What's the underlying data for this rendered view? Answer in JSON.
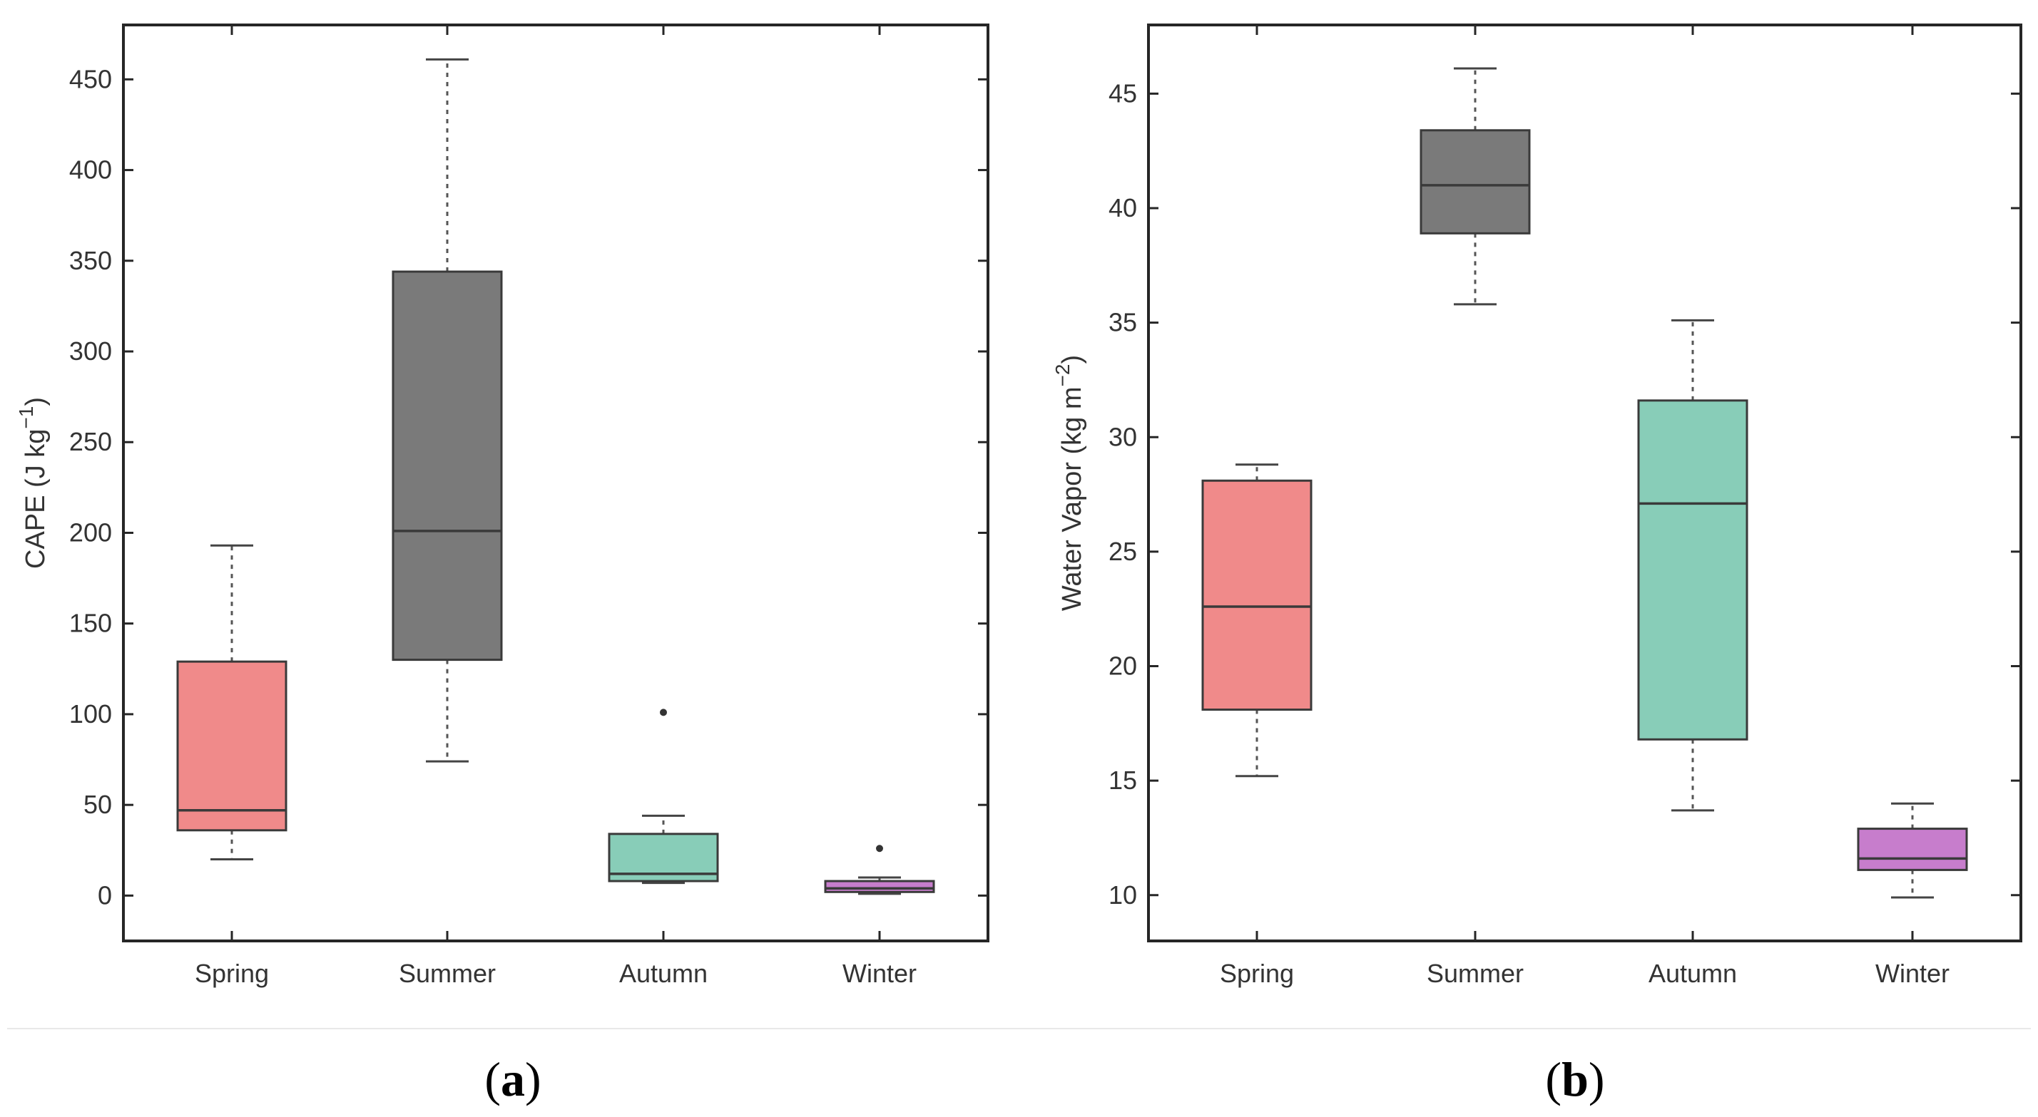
{
  "chart_data": [
    {
      "type": "boxplot",
      "panel_label": "a",
      "ylabel": "CAPE (J kg",
      "ylabel_exponent": "−1",
      "ylabel_suffix": ")",
      "ylim": [
        -25,
        480
      ],
      "yticks": [
        0,
        50,
        100,
        150,
        200,
        250,
        300,
        350,
        400,
        450
      ],
      "categories": [
        "Spring",
        "Summer",
        "Autumn",
        "Winter"
      ],
      "boxes": [
        {
          "category": "Spring",
          "whisker_low": 20,
          "q1": 36,
          "median": 47,
          "q3": 129,
          "whisker_high": 193,
          "outliers": [],
          "color": "#f08a8a"
        },
        {
          "category": "Summer",
          "whisker_low": 74,
          "q1": 130,
          "median": 201,
          "q3": 344,
          "whisker_high": 461,
          "outliers": [],
          "color": "#7a7a7a"
        },
        {
          "category": "Autumn",
          "whisker_low": 7,
          "q1": 8,
          "median": 12,
          "q3": 34,
          "whisker_high": 44,
          "outliers": [
            101
          ],
          "color": "#88cdb8"
        },
        {
          "category": "Winter",
          "whisker_low": 1,
          "q1": 2,
          "median": 4,
          "q3": 8,
          "whisker_high": 10,
          "outliers": [
            26
          ],
          "color": "#c77dcc"
        }
      ]
    },
    {
      "type": "boxplot",
      "panel_label": "b",
      "ylabel": "Water Vapor (kg m",
      "ylabel_exponent": "−2",
      "ylabel_suffix": ")",
      "ylim": [
        8,
        48
      ],
      "yticks": [
        10,
        15,
        20,
        25,
        30,
        35,
        40,
        45
      ],
      "categories": [
        "Spring",
        "Summer",
        "Autumn",
        "Winter"
      ],
      "boxes": [
        {
          "category": "Spring",
          "whisker_low": 15.2,
          "q1": 18.1,
          "median": 22.6,
          "q3": 28.1,
          "whisker_high": 28.8,
          "outliers": [],
          "color": "#f08a8a"
        },
        {
          "category": "Summer",
          "whisker_low": 35.8,
          "q1": 38.9,
          "median": 41.0,
          "q3": 43.4,
          "whisker_high": 46.1,
          "outliers": [],
          "color": "#7a7a7a"
        },
        {
          "category": "Autumn",
          "whisker_low": 13.7,
          "q1": 16.8,
          "median": 27.1,
          "q3": 31.6,
          "whisker_high": 35.1,
          "outliers": [],
          "color": "#88cdb8"
        },
        {
          "category": "Winter",
          "whisker_low": 9.9,
          "q1": 11.1,
          "median": 11.6,
          "q3": 12.9,
          "whisker_high": 14.0,
          "outliers": [],
          "color": "#c77dcc"
        }
      ]
    }
  ]
}
